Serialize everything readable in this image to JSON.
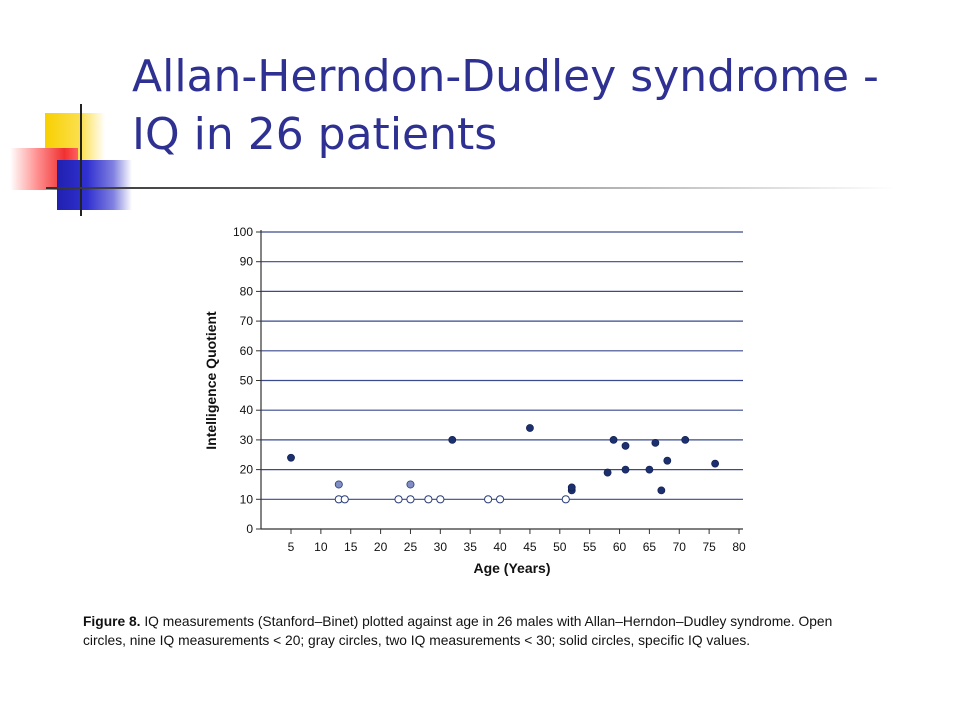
{
  "slide": {
    "title_line1": "Allan-Herndon-Dudley syndrome -",
    "title_line2": "IQ in 26 patients",
    "title_color": "#2e3192"
  },
  "figure": {
    "caption_label": "Figure 8.",
    "caption_text": "IQ measurements (Stanford–Binet) plotted against age in 26 males with Allan–Herndon–Dudley syndrome. Open circles, nine IQ measurements < 20; gray circles, two IQ measurements < 30; solid circles, specific IQ values."
  },
  "chart_data": {
    "type": "scatter",
    "title": "",
    "xlabel": "Age (Years)",
    "ylabel": "Intelligence Quotient",
    "xlim": [
      0,
      80
    ],
    "ylim": [
      0,
      100
    ],
    "xticks": [
      5,
      10,
      15,
      20,
      25,
      30,
      35,
      40,
      45,
      50,
      55,
      60,
      65,
      70,
      75,
      80
    ],
    "yticks": [
      0,
      10,
      20,
      30,
      40,
      50,
      60,
      70,
      80,
      90,
      100
    ],
    "grid": "horizontal",
    "series": [
      {
        "name": "Open circles, nine IQ measurements < 20",
        "style": "open",
        "color": "#2a3d7a",
        "points": [
          [
            13,
            10
          ],
          [
            14,
            10
          ],
          [
            23,
            10
          ],
          [
            25,
            10
          ],
          [
            28,
            10
          ],
          [
            30,
            10
          ],
          [
            38,
            10
          ],
          [
            40,
            10
          ],
          [
            51,
            10
          ]
        ]
      },
      {
        "name": "Gray circles, two IQ measurements < 30",
        "style": "gray",
        "color": "#7f8fc4",
        "points": [
          [
            13,
            15
          ],
          [
            25,
            15
          ]
        ]
      },
      {
        "name": "Solid circles, specific IQ values",
        "style": "solid",
        "color": "#1c2f6e",
        "points": [
          [
            5,
            24
          ],
          [
            32,
            30
          ],
          [
            45,
            34
          ],
          [
            52,
            13
          ],
          [
            52,
            14
          ],
          [
            58,
            19
          ],
          [
            59,
            30
          ],
          [
            61,
            20
          ],
          [
            61,
            28
          ],
          [
            65,
            20
          ],
          [
            66,
            29
          ],
          [
            67,
            13
          ],
          [
            68,
            23
          ],
          [
            71,
            30
          ],
          [
            76,
            22
          ]
        ]
      }
    ]
  }
}
